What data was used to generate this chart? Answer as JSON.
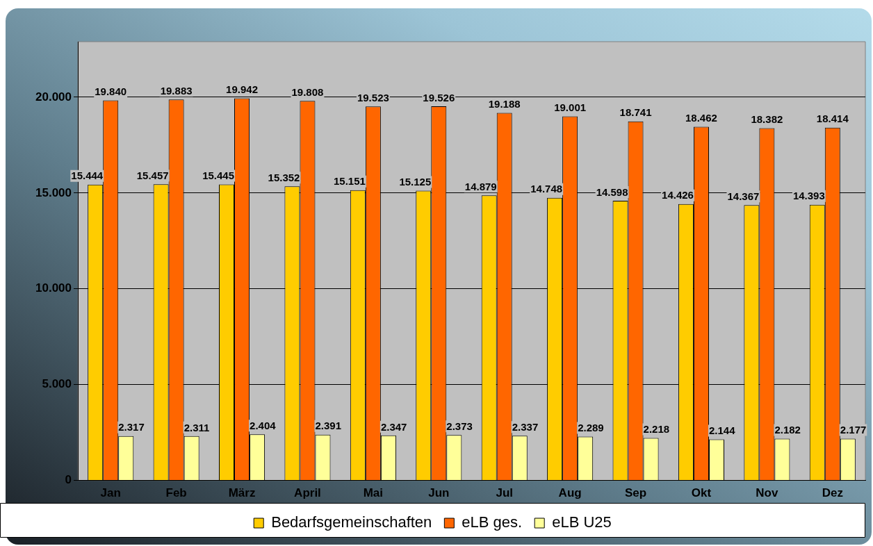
{
  "chart_data": {
    "type": "bar",
    "categories": [
      "Jan",
      "Feb",
      "März",
      "April",
      "Mai",
      "Jun",
      "Jul",
      "Aug",
      "Sep",
      "Okt",
      "Nov",
      "Dez"
    ],
    "series": [
      {
        "name": "Bedarfsgemeinschaften",
        "color": "#ffcc00",
        "values": [
          15444,
          15457,
          15445,
          15352,
          15151,
          15125,
          14879,
          14748,
          14598,
          14426,
          14367,
          14393
        ],
        "value_labels": [
          "15.444",
          "15.457",
          "15.445",
          "15.352",
          "15.151",
          "15.125",
          "14.879",
          "14.748",
          "14.598",
          "14.426",
          "14.367",
          "14.393"
        ]
      },
      {
        "name": "eLB ges.",
        "color": "#ff6600",
        "values": [
          19840,
          19883,
          19942,
          19808,
          19523,
          19526,
          19188,
          19001,
          18741,
          18462,
          18382,
          18414
        ],
        "value_labels": [
          "19.840",
          "19.883",
          "19.942",
          "19.808",
          "19.523",
          "19.526",
          "19.188",
          "19.001",
          "18.741",
          "18.462",
          "18.382",
          "18.414"
        ]
      },
      {
        "name": "eLB U25",
        "color": "#ffff99",
        "values": [
          2317,
          2311,
          2404,
          2391,
          2347,
          2373,
          2337,
          2289,
          2218,
          2144,
          2182,
          2177
        ],
        "value_labels": [
          "2.317",
          "2.311",
          "2.404",
          "2.391",
          "2.347",
          "2.373",
          "2.337",
          "2.289",
          "2.218",
          "2.144",
          "2.182",
          "2.177"
        ]
      }
    ],
    "ylim": [
      0,
      22900
    ],
    "yticks": [
      {
        "value": 0,
        "label": "0"
      },
      {
        "value": 5000,
        "label": "5.000"
      },
      {
        "value": 10000,
        "label": "10.000"
      },
      {
        "value": 15000,
        "label": "15.000"
      },
      {
        "value": 20000,
        "label": "20.000"
      }
    ],
    "grid": "y",
    "legend": "bottom"
  }
}
